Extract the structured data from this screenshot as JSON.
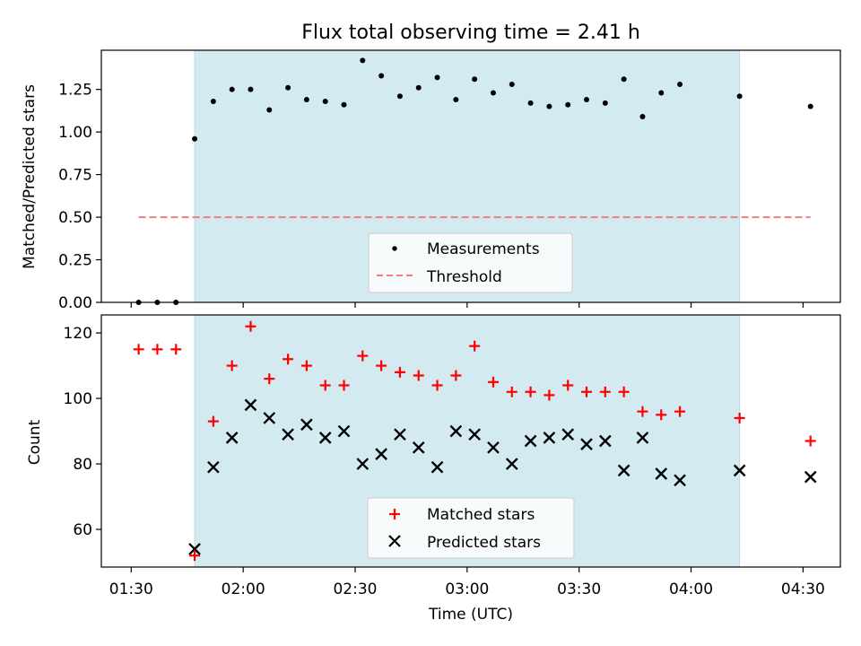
{
  "title": "Flux total observing time = 2.41 h",
  "chart_data": [
    {
      "type": "scatter",
      "panel": "top",
      "ylabel": "Matched/Predicted stars",
      "ylim": [
        0,
        1.48
      ],
      "yticks": [
        0.0,
        0.25,
        0.5,
        0.75,
        1.0,
        1.25
      ],
      "ytick_labels": [
        "0.00",
        "0.25",
        "0.50",
        "0.75",
        "1.00",
        "1.25"
      ],
      "xlim": [
        82,
        280
      ],
      "shaded_span": [
        107,
        253
      ],
      "shade_color": "#d4eaf1",
      "threshold": {
        "name": "Threshold",
        "y": 0.5,
        "x": [
          92,
          272
        ],
        "color": "#f07f7f"
      },
      "series": [
        {
          "name": "Measurements",
          "color": "#000000",
          "x": [
            92,
            97,
            102,
            107,
            112,
            117,
            122,
            127,
            132,
            137,
            142,
            147,
            152,
            157,
            162,
            167,
            172,
            177,
            182,
            187,
            192,
            197,
            202,
            207,
            212,
            217,
            222,
            227,
            232,
            237,
            253,
            272
          ],
          "y": [
            0.0,
            0.0,
            0.0,
            0.96,
            1.18,
            1.25,
            1.25,
            1.13,
            1.26,
            1.19,
            1.18,
            1.16,
            1.42,
            1.33,
            1.21,
            1.26,
            1.32,
            1.19,
            1.31,
            1.23,
            1.28,
            1.17,
            1.15,
            1.16,
            1.19,
            1.17,
            1.31,
            1.09,
            1.23,
            1.28,
            1.21,
            1.15
          ]
        }
      ],
      "legend": [
        "Measurements",
        "Threshold"
      ]
    },
    {
      "type": "scatter",
      "panel": "bottom",
      "xlabel": "Time (UTC)",
      "ylabel": "Count",
      "ylim": [
        48.5,
        125.5
      ],
      "yticks": [
        60,
        80,
        100,
        120
      ],
      "ytick_labels": [
        "60",
        "80",
        "100",
        "120"
      ],
      "xlim": [
        82,
        280
      ],
      "xticks": [
        90,
        120,
        150,
        180,
        210,
        240,
        270
      ],
      "xtick_labels": [
        "01:30",
        "02:00",
        "02:30",
        "03:00",
        "03:30",
        "04:00",
        "04:30"
      ],
      "shaded_span": [
        107,
        253
      ],
      "series": [
        {
          "name": "Matched stars",
          "marker": "+",
          "color": "#ff0000",
          "x": [
            92,
            97,
            102,
            107,
            112,
            117,
            122,
            127,
            132,
            137,
            142,
            147,
            152,
            157,
            162,
            167,
            172,
            177,
            182,
            187,
            192,
            197,
            202,
            207,
            212,
            217,
            222,
            227,
            232,
            237,
            253,
            272
          ],
          "y": [
            115,
            115,
            115,
            52,
            93,
            110,
            122,
            106,
            112,
            110,
            104,
            104,
            113,
            110,
            108,
            107,
            104,
            107,
            116,
            105,
            102,
            102,
            101,
            104,
            102,
            102,
            102,
            96,
            95,
            96,
            94,
            87
          ]
        },
        {
          "name": "Predicted stars",
          "marker": "x",
          "color": "#000000",
          "x": [
            107,
            112,
            117,
            122,
            127,
            132,
            137,
            142,
            147,
            152,
            157,
            162,
            167,
            172,
            177,
            182,
            187,
            192,
            197,
            202,
            207,
            212,
            217,
            222,
            227,
            232,
            237,
            253,
            272
          ],
          "y": [
            54,
            79,
            88,
            98,
            94,
            89,
            92,
            88,
            90,
            80,
            83,
            89,
            85,
            79,
            90,
            89,
            85,
            80,
            87,
            88,
            89,
            86,
            87,
            78,
            88,
            77,
            75,
            78,
            76
          ]
        }
      ],
      "legend": [
        "Matched stars",
        "Predicted stars"
      ]
    }
  ]
}
